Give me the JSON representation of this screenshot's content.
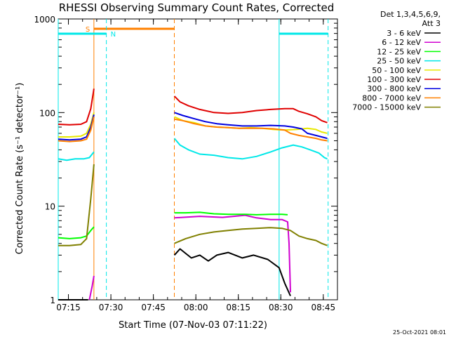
{
  "chart_data": {
    "type": "line",
    "title": "RHESSI Observing Summary Count Rates, Corrected",
    "xlabel": "Start Time (07-Nov-03 07:11:22)",
    "ylabel": "Corrected Count Rate (s⁻¹ detector⁻¹)",
    "x_unit": "minutes after 07:11:22",
    "xlim": [
      0,
      98.6
    ],
    "ylim": [
      1,
      1000
    ],
    "y_scale": "log",
    "grid": false,
    "x_ticks": [
      {
        "value": 3.6,
        "label": "07:15"
      },
      {
        "value": 18.6,
        "label": "07:30"
      },
      {
        "value": 33.6,
        "label": "07:45"
      },
      {
        "value": 48.6,
        "label": "08:00"
      },
      {
        "value": 63.6,
        "label": "08:15"
      },
      {
        "value": 78.6,
        "label": "08:30"
      },
      {
        "value": 93.6,
        "label": "08:45"
      }
    ],
    "y_ticks": [
      {
        "value": 1,
        "label": "1"
      },
      {
        "value": 10,
        "label": "10"
      },
      {
        "value": 100,
        "label": "100"
      },
      {
        "value": 1000,
        "label": "1000"
      }
    ],
    "legend": {
      "placement": "right",
      "header": [
        "Det 1,3,4,5,6,9,",
        "Att 3"
      ]
    },
    "series": [
      {
        "name": "3 - 6 keV",
        "color": "#000000",
        "segments": [
          [
            [
              0,
              1
            ],
            [
              9,
              1
            ],
            [
              10.5,
              1
            ]
          ],
          [
            [
              41,
              3
            ],
            [
              43,
              3.5
            ],
            [
              47,
              2.8
            ],
            [
              50,
              3
            ],
            [
              53,
              2.6
            ],
            [
              56,
              3
            ],
            [
              60,
              3.2
            ],
            [
              65,
              2.8
            ],
            [
              69,
              3
            ],
            [
              74,
              2.7
            ],
            [
              78,
              2.2
            ],
            [
              80,
              1.5
            ],
            [
              82,
              1.1
            ]
          ]
        ]
      },
      {
        "name": "6 - 12 keV",
        "color": "#d000d0",
        "segments": [
          [
            [
              11,
              1
            ],
            [
              12,
              1.4
            ],
            [
              12.6,
              1.8
            ]
          ],
          [
            [
              41,
              7.5
            ],
            [
              50,
              7.8
            ],
            [
              58,
              7.6
            ],
            [
              66,
              8
            ],
            [
              70,
              7.5
            ],
            [
              75,
              7.2
            ],
            [
              79,
              7.2
            ],
            [
              81,
              6.8
            ],
            [
              81.5,
              4
            ],
            [
              82,
              1.2
            ]
          ]
        ]
      },
      {
        "name": "12 - 25 keV",
        "color": "#00ff00",
        "segments": [
          [
            [
              0,
              4.6
            ],
            [
              4,
              4.5
            ],
            [
              8,
              4.6
            ],
            [
              10,
              4.8
            ],
            [
              11.5,
              5.5
            ],
            [
              12.6,
              6
            ]
          ],
          [
            [
              41,
              8.5
            ],
            [
              45,
              8.5
            ],
            [
              50,
              8.6
            ],
            [
              55,
              8.3
            ],
            [
              60,
              8.2
            ],
            [
              66,
              8.2
            ],
            [
              70,
              8.1
            ],
            [
              75,
              8.2
            ],
            [
              79,
              8.2
            ],
            [
              81,
              8.1
            ]
          ]
        ]
      },
      {
        "name": "25 - 50 keV",
        "color": "#00e8e8",
        "segments": [
          [
            [
              0,
              32
            ],
            [
              3,
              31
            ],
            [
              6,
              32
            ],
            [
              9,
              32
            ],
            [
              11,
              33
            ],
            [
              12.6,
              38
            ]
          ],
          [
            [
              41,
              53
            ],
            [
              43,
              45
            ],
            [
              46,
              40
            ],
            [
              50,
              36
            ],
            [
              55,
              35
            ],
            [
              60,
              33
            ],
            [
              65,
              32
            ],
            [
              70,
              34
            ],
            [
              75,
              38
            ],
            [
              79,
              42
            ],
            [
              83,
              45
            ],
            [
              86,
              43
            ],
            [
              89,
              40
            ],
            [
              92,
              37
            ],
            [
              94,
              33
            ],
            [
              95,
              32
            ]
          ]
        ]
      },
      {
        "name": "50 - 100 keV",
        "color": "#e8e800",
        "segments": [
          [
            [
              0,
              55
            ],
            [
              4,
              55
            ],
            [
              8,
              56
            ],
            [
              10,
              60
            ],
            [
              11.5,
              75
            ],
            [
              12.6,
              100
            ]
          ],
          [
            [
              41,
              90
            ],
            [
              44,
              82
            ],
            [
              48,
              78
            ],
            [
              52,
              72
            ],
            [
              56,
              70
            ],
            [
              60,
              69
            ],
            [
              64,
              68
            ],
            [
              68,
              69
            ],
            [
              72,
              68
            ],
            [
              76,
              66
            ],
            [
              80,
              65
            ],
            [
              84,
              66
            ],
            [
              88,
              68
            ],
            [
              91,
              66
            ],
            [
              93,
              62
            ],
            [
              95,
              60
            ]
          ]
        ]
      },
      {
        "name": "100 - 300 keV",
        "color": "#e00000",
        "segments": [
          [
            [
              0,
              75
            ],
            [
              4,
              74
            ],
            [
              8,
              75
            ],
            [
              10,
              80
            ],
            [
              11.5,
              110
            ],
            [
              12.6,
              180
            ]
          ],
          [
            [
              41,
              150
            ],
            [
              43,
              130
            ],
            [
              46,
              118
            ],
            [
              50,
              108
            ],
            [
              55,
              100
            ],
            [
              60,
              98
            ],
            [
              65,
              100
            ],
            [
              70,
              105
            ],
            [
              75,
              108
            ],
            [
              80,
              110
            ],
            [
              83,
              110
            ],
            [
              85,
              103
            ],
            [
              88,
              97
            ],
            [
              91,
              90
            ],
            [
              93,
              82
            ],
            [
              95,
              78
            ]
          ]
        ]
      },
      {
        "name": "300 - 800 keV",
        "color": "#0000e0",
        "segments": [
          [
            [
              0,
              52
            ],
            [
              4,
              51
            ],
            [
              8,
              52
            ],
            [
              10,
              55
            ],
            [
              11.5,
              70
            ],
            [
              12.6,
              95
            ]
          ],
          [
            [
              41,
              100
            ],
            [
              44,
              93
            ],
            [
              48,
              86
            ],
            [
              52,
              80
            ],
            [
              56,
              76
            ],
            [
              60,
              74
            ],
            [
              65,
              72
            ],
            [
              70,
              72
            ],
            [
              75,
              73
            ],
            [
              80,
              72
            ],
            [
              83,
              70
            ],
            [
              86,
              67
            ],
            [
              88,
              60
            ],
            [
              90,
              58
            ],
            [
              93,
              55
            ],
            [
              95,
              53
            ]
          ]
        ]
      },
      {
        "name": "800 - 7000 keV",
        "color": "#ff8000",
        "segments": [
          [
            [
              0,
              50
            ],
            [
              4,
              49
            ],
            [
              8,
              50
            ],
            [
              10,
              52
            ],
            [
              11.5,
              65
            ],
            [
              12.6,
              90
            ]
          ],
          [
            [
              41,
              85
            ],
            [
              44,
              82
            ],
            [
              48,
              76
            ],
            [
              52,
              72
            ],
            [
              56,
              70
            ],
            [
              60,
              69
            ],
            [
              64,
              68
            ],
            [
              68,
              68
            ],
            [
              72,
              68
            ],
            [
              76,
              67
            ],
            [
              80,
              65
            ],
            [
              82,
              60
            ],
            [
              85,
              57
            ],
            [
              88,
              55
            ],
            [
              91,
              53
            ],
            [
              93,
              51
            ],
            [
              95,
              50
            ]
          ]
        ]
      },
      {
        "name": "7000 - 15000 keV",
        "color": "#808000",
        "segments": [
          [
            [
              0,
              3.8
            ],
            [
              4,
              3.8
            ],
            [
              8,
              3.9
            ],
            [
              10,
              4.5
            ],
            [
              11.5,
              12
            ],
            [
              12.6,
              28
            ]
          ],
          [
            [
              41,
              4
            ],
            [
              45,
              4.5
            ],
            [
              50,
              5
            ],
            [
              55,
              5.3
            ],
            [
              60,
              5.5
            ],
            [
              65,
              5.7
            ],
            [
              70,
              5.8
            ],
            [
              75,
              5.9
            ],
            [
              79,
              5.8
            ],
            [
              82,
              5.5
            ],
            [
              85,
              4.8
            ],
            [
              88,
              4.5
            ],
            [
              91,
              4.3
            ],
            [
              93,
              4
            ],
            [
              95,
              3.8
            ]
          ]
        ]
      }
    ],
    "annotations": [
      {
        "label": "S",
        "kind": "saa",
        "color": "#ff8000",
        "x_start": 12.6,
        "x_end": 41.0,
        "solid_start": true
      },
      {
        "label": "N",
        "kind": "night",
        "color": "#00e8e8",
        "x_start": 0.0,
        "x_end": 17.0,
        "solid_start": true
      },
      {
        "label": "",
        "kind": "night",
        "color": "#00e8e8",
        "x_start": 78.0,
        "x_end": 95.3,
        "solid_start": true
      }
    ]
  },
  "footer": {
    "timestamp": "25-Oct-2021 08:01"
  }
}
